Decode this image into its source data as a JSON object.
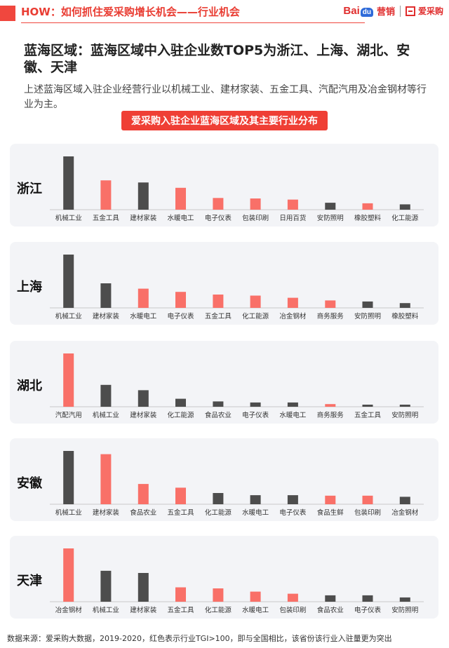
{
  "header": {
    "title": "HOW：如何抓住爱采购增长机会——行业机会",
    "logo_baidu_left": "Bai",
    "logo_baidu_du": "du",
    "logo_yingxiao": "营销",
    "logo_aicaigou": "爱采购"
  },
  "main_title": "蓝海区域：蓝海区域中入驻企业数TOP5为浙江、上海、湖北、安徽、天津",
  "description": "上述蓝海区域入驻企业经营行业以机械工业、建材家装、五金工具、汽配汽用及冶金钢材等行业为主。",
  "colors": {
    "highlight": "#f97068",
    "normal": "#4d4d4d"
  },
  "footer": "数据来源：爱采购大数据，2019-2020，红色表示行业TGI>100，即与全国相比，该省份该行业入驻量更为突出",
  "chart_data": {
    "type": "bar",
    "title": "爱采购入驻企业蓝海区域及其主要行业分布",
    "note": "",
    "panels": [
      {
        "region": "浙江",
        "categories": [
          "机械工业",
          "五金工具",
          "建材家装",
          "水暖电工",
          "电子仪表",
          "包装印刷",
          "日用百货",
          "安防照明",
          "橡胶塑料",
          "化工能源"
        ],
        "values": [
          100,
          55,
          51,
          41,
          22,
          21,
          19,
          13,
          12,
          10
        ],
        "highlight": [
          false,
          true,
          false,
          true,
          true,
          true,
          true,
          false,
          true,
          false
        ]
      },
      {
        "region": "上海",
        "categories": [
          "机械工业",
          "建材家装",
          "水暖电工",
          "电子仪表",
          "五金工具",
          "化工能源",
          "冶金钢材",
          "商务服务",
          "安防照明",
          "橡胶塑料"
        ],
        "values": [
          100,
          46,
          36,
          30,
          25,
          23,
          19,
          14,
          12,
          9
        ],
        "highlight": [
          false,
          false,
          true,
          true,
          true,
          true,
          true,
          true,
          false,
          false
        ]
      },
      {
        "region": "湖北",
        "categories": [
          "汽配汽用",
          "机械工业",
          "建材家装",
          "化工能源",
          "食品农业",
          "电子仪表",
          "水暖电工",
          "商务服务",
          "五金工具",
          "安防照明"
        ],
        "values": [
          100,
          41,
          31,
          15,
          10,
          8,
          8,
          5,
          4,
          4
        ],
        "highlight": [
          true,
          false,
          false,
          false,
          false,
          false,
          false,
          true,
          false,
          false
        ]
      },
      {
        "region": "安徽",
        "categories": [
          "机械工业",
          "建材家装",
          "食品农业",
          "五金工具",
          "化工能源",
          "水暖电工",
          "电子仪表",
          "食品生鲜",
          "包装印刷",
          "冶金钢材"
        ],
        "values": [
          100,
          94,
          38,
          31,
          21,
          17,
          17,
          16,
          16,
          14
        ],
        "highlight": [
          false,
          true,
          true,
          true,
          false,
          false,
          false,
          true,
          true,
          false
        ]
      },
      {
        "region": "天津",
        "categories": [
          "冶金钢材",
          "机械工业",
          "建材家装",
          "五金工具",
          "化工能源",
          "水暖电工",
          "包装印刷",
          "食品农业",
          "电子仪表",
          "安防照明"
        ],
        "values": [
          100,
          58,
          54,
          27,
          25,
          19,
          15,
          12,
          12,
          8
        ],
        "highlight": [
          true,
          false,
          false,
          true,
          true,
          true,
          true,
          false,
          false,
          false
        ]
      }
    ]
  }
}
